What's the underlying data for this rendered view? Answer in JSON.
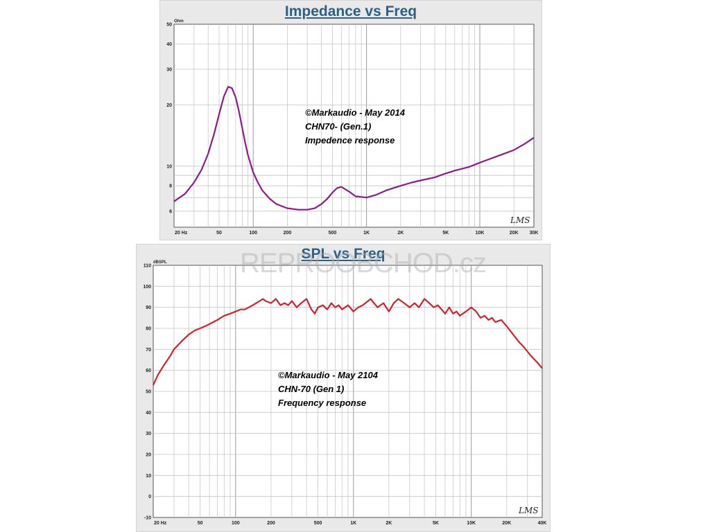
{
  "chart_data": [
    {
      "type": "line",
      "title": "Impedance vs Freq",
      "ylabel": "Ohm",
      "xscale": "log",
      "xlim": [
        20,
        30000
      ],
      "ylim": [
        5,
        50
      ],
      "yscale": "log",
      "grid": true,
      "x_ticks": [
        "20 Hz",
        "50",
        "100",
        "200",
        "500",
        "1K",
        "2K",
        "5K",
        "10K",
        "20K",
        "30K"
      ],
      "y_ticks": [
        "6",
        "8",
        "10",
        "20",
        "30",
        "40",
        "50"
      ],
      "annotation": [
        "©Markaudio  - May 2014",
        "CHN70- (Gen.1)",
        "Impedence response"
      ],
      "signature": "LMS",
      "series": [
        {
          "color": "#8b1a8b",
          "x": [
            20,
            25,
            30,
            35,
            40,
            45,
            50,
            55,
            60,
            65,
            70,
            75,
            80,
            85,
            90,
            100,
            110,
            120,
            140,
            160,
            200,
            250,
            300,
            350,
            400,
            450,
            500,
            550,
            600,
            700,
            800,
            1000,
            1200,
            1500,
            2000,
            2500,
            3000,
            4000,
            5000,
            6000,
            8000,
            10000,
            12000,
            15000,
            20000,
            25000,
            30000
          ],
          "y": [
            6.7,
            7.3,
            8.3,
            9.6,
            11.5,
            14.3,
            18.0,
            22.0,
            24.6,
            24.2,
            21.8,
            18.5,
            15.4,
            13.0,
            11.3,
            9.3,
            8.3,
            7.6,
            6.9,
            6.5,
            6.2,
            6.1,
            6.1,
            6.2,
            6.5,
            6.9,
            7.4,
            7.8,
            7.9,
            7.5,
            7.1,
            7.0,
            7.2,
            7.6,
            8.0,
            8.3,
            8.5,
            8.8,
            9.2,
            9.5,
            9.9,
            10.4,
            10.8,
            11.3,
            12.0,
            12.9,
            13.8
          ]
        }
      ]
    },
    {
      "type": "line",
      "title": "SPL vs Freq",
      "ylabel": "dBSPL",
      "xscale": "log",
      "xlim": [
        20,
        40000
      ],
      "ylim": [
        -10,
        110
      ],
      "grid": true,
      "x_ticks": [
        "20 Hz",
        "50",
        "100",
        "200",
        "500",
        "1K",
        "2K",
        "5K",
        "10K",
        "20K",
        "40K"
      ],
      "y_ticks": [
        "110",
        "100",
        "90",
        "80",
        "70",
        "60",
        "50",
        "40",
        "30",
        "20",
        "10",
        "0",
        "-10"
      ],
      "annotation": [
        "©Markaudio  -  May 2104",
        "CHN-70 (Gen 1)",
        "Frequency response"
      ],
      "signature": "LMS",
      "series": [
        {
          "color": "#d3202c",
          "x": [
            20,
            22,
            25,
            28,
            30,
            35,
            40,
            45,
            50,
            55,
            60,
            70,
            80,
            90,
            100,
            110,
            120,
            140,
            160,
            170,
            180,
            200,
            220,
            240,
            260,
            280,
            300,
            330,
            360,
            400,
            440,
            470,
            500,
            550,
            600,
            650,
            700,
            750,
            800,
            900,
            1000,
            1100,
            1200,
            1400,
            1600,
            1800,
            2000,
            2200,
            2400,
            2700,
            3000,
            3300,
            3600,
            4000,
            4400,
            4800,
            5200,
            5600,
            6000,
            6500,
            7000,
            7500,
            8000,
            9000,
            10000,
            11000,
            12000,
            13000,
            14000,
            15000,
            16000,
            18000,
            20000,
            22000,
            25000,
            28000,
            32000,
            36000,
            40000
          ],
          "y": [
            53,
            58,
            63,
            67,
            70,
            74,
            77,
            79,
            80,
            81,
            82,
            84,
            86,
            87,
            88,
            89,
            89,
            91,
            93,
            94,
            93,
            92,
            94,
            91,
            92,
            91,
            93,
            90,
            92,
            94,
            89,
            87,
            90,
            91,
            89,
            92,
            90,
            91,
            89,
            91,
            88,
            90,
            91,
            94,
            90,
            92,
            88,
            92,
            94,
            92,
            90,
            92,
            90,
            94,
            92,
            90,
            91,
            89,
            87,
            90,
            87,
            88,
            86,
            88,
            90,
            88,
            85,
            86,
            84,
            85,
            83,
            84,
            81,
            78,
            74,
            71,
            67,
            64,
            61
          ]
        }
      ]
    }
  ],
  "watermark": "REPROOBCHOD.cz"
}
